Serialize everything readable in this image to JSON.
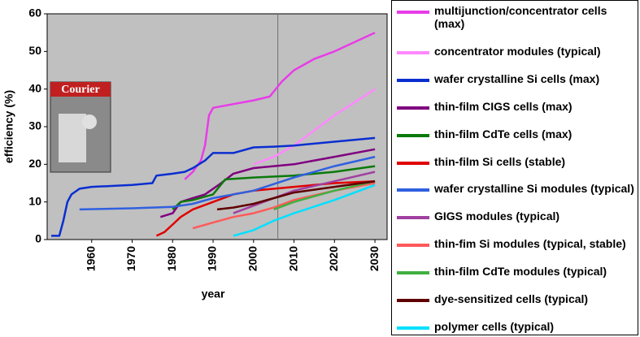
{
  "chart_data": {
    "type": "line",
    "xlabel": "year",
    "ylabel": "efficiency (%)",
    "xlim": [
      1949,
      2033
    ],
    "ylim": [
      0,
      60
    ],
    "xticks": [
      1960,
      1970,
      1980,
      1990,
      2000,
      2010,
      2020,
      2030
    ],
    "yticks": [
      0,
      10,
      20,
      30,
      40,
      50,
      60
    ],
    "reference_line_x": 2006,
    "image_text": "Courier",
    "background": "#c0c0c0",
    "series": [
      {
        "name": "multijunction/concentrator cells (max)",
        "color": "#e83ce8",
        "x": [
          1983,
          1985,
          1987,
          1988,
          1989,
          1990,
          1995,
          2000,
          2004,
          2007,
          2010,
          2015,
          2020,
          2025,
          2030
        ],
        "values": [
          16,
          18,
          21,
          25,
          33,
          35,
          36,
          37,
          38,
          42,
          45,
          48,
          50,
          52.5,
          55
        ]
      },
      {
        "name": "concentrator modules (typical)",
        "color": "#ff88ff",
        "x": [
          2000,
          2005,
          2010,
          2015,
          2020,
          2025,
          2030
        ],
        "values": [
          20,
          22,
          25,
          29,
          33,
          36.5,
          40
        ]
      },
      {
        "name": "wafer crystalline Si cells (max)",
        "color": "#0a2ed0",
        "x": [
          1950,
          1952,
          1953,
          1954,
          1955,
          1957,
          1960,
          1970,
          1975,
          1976,
          1980,
          1983,
          1985,
          1988,
          1990,
          1995,
          2000,
          2005,
          2010,
          2020,
          2030
        ],
        "values": [
          1,
          1,
          5,
          10,
          12,
          13.5,
          14,
          14.5,
          15,
          17,
          17.5,
          18,
          19,
          21,
          23,
          23,
          24.5,
          24.7,
          25,
          26,
          27
        ]
      },
      {
        "name": "thin-film CIGS cells (max)",
        "color": "#800080",
        "x": [
          1977,
          1980,
          1982,
          1985,
          1988,
          1992,
          1995,
          2000,
          2005,
          2010,
          2020,
          2030
        ],
        "values": [
          6,
          7,
          10,
          11,
          12,
          15,
          17.5,
          19,
          19.5,
          20,
          22,
          24
        ]
      },
      {
        "name": "thin-film CdTe cells (max)",
        "color": "#0a7a0a",
        "x": [
          1980,
          1982,
          1985,
          1990,
          1993,
          2000,
          2010,
          2020,
          2030
        ],
        "values": [
          8,
          10,
          10.5,
          12,
          16,
          16.5,
          17,
          18,
          19.5
        ]
      },
      {
        "name": "thin-film Si cells (stable)",
        "color": "#e00000",
        "x": [
          1976,
          1978,
          1980,
          1982,
          1985,
          1990,
          1995,
          2000,
          2010,
          2020,
          2030
        ],
        "values": [
          1,
          2,
          4,
          6,
          8,
          10,
          12,
          13,
          14,
          15,
          15.5
        ]
      },
      {
        "name": "wafer crystalline Si modules (typical)",
        "color": "#3060e0",
        "x": [
          1957,
          1970,
          1980,
          1985,
          1990,
          2000,
          2010,
          2020,
          2030
        ],
        "values": [
          8,
          8.3,
          8.7,
          9.5,
          11,
          13,
          16.5,
          19.5,
          22
        ]
      },
      {
        "name": "GIGS modules (typical)",
        "color": "#a040a0",
        "x": [
          1995,
          2000,
          2005,
          2010,
          2020,
          2030
        ],
        "values": [
          7,
          9,
          11,
          13,
          15.5,
          18
        ]
      },
      {
        "name": "thin-fim Si modules (typical, stable)",
        "color": "#ff5a5a",
        "x": [
          1985,
          1990,
          1995,
          2000,
          2005,
          2010,
          2020,
          2030
        ],
        "values": [
          3,
          4.5,
          6,
          7,
          8.5,
          10.5,
          13,
          15
        ]
      },
      {
        "name": "thin-film CdTe modules (typical)",
        "color": "#40b040",
        "x": [
          2005,
          2010,
          2020,
          2030
        ],
        "values": [
          8,
          10,
          13,
          15.5
        ]
      },
      {
        "name": "dye-sensitized cells (typical)",
        "color": "#600000",
        "x": [
          1991,
          1995,
          2000,
          2005,
          2010,
          2020,
          2030
        ],
        "values": [
          8,
          8.5,
          9.5,
          11,
          12.5,
          14,
          15.5
        ]
      },
      {
        "name": "polymer cells (typical)",
        "color": "#00e0ff",
        "x": [
          1995,
          2000,
          2005,
          2010,
          2020,
          2030
        ],
        "values": [
          1,
          2.5,
          5,
          7,
          10.5,
          14.5
        ]
      }
    ]
  }
}
